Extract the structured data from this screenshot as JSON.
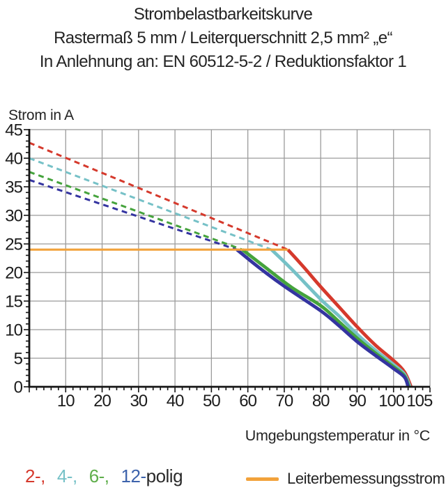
{
  "title": {
    "line1": "Strombelastbarkeitskurve",
    "line2": "Rastermaß 5 mm / Leiterquerschnitt 2,5 mm² „e“",
    "line3": "In Anlehnung an: EN 60512-5-2 / Reduktionsfaktor 1"
  },
  "colors": {
    "grid": "#9b9b9b",
    "axis": "#141414",
    "tick_text": "#1c1c1c",
    "label_text": "#242424"
  },
  "legend": {
    "poles": [
      {
        "label": "2-,",
        "color": "#D5392C"
      },
      {
        "label": "4-,",
        "color": "#76C1C7"
      },
      {
        "label": "6-,",
        "color": "#5FAE4B"
      },
      {
        "label": "12-",
        "color": "#3D63AC"
      }
    ],
    "poles_suffix": "polig",
    "rated_label": "Leiterbemessungsstrom",
    "rated_color": "#F2A23B"
  },
  "chart_data": {
    "type": "line",
    "title": "Strombelastbarkeitskurve",
    "xlabel": "Umgebungstemperatur in °C",
    "ylabel": "Strom in A",
    "xlim": [
      0,
      110
    ],
    "ylim": [
      0,
      45
    ],
    "grid": {
      "x_step": 10,
      "y_step": 5
    },
    "x_minor_step": 2,
    "y_minor_step": 1,
    "x_tick_labels": [
      10,
      20,
      30,
      40,
      50,
      60,
      70,
      80,
      90,
      100,
      105
    ],
    "y_tick_labels": [
      0,
      5,
      10,
      15,
      20,
      25,
      30,
      35,
      40,
      45
    ],
    "rated_current": {
      "value": 24,
      "x_start": 0,
      "x_end": 71,
      "color": "#F2A23B",
      "label": "Leiterbemessungsstrom"
    },
    "series": [
      {
        "name": "2-polig",
        "color": "#D5392C",
        "derating_line": [
          [
            0,
            42.7
          ],
          [
            71,
            24
          ]
        ],
        "curve": [
          [
            71,
            24
          ],
          [
            75,
            21.2
          ],
          [
            80,
            17.5
          ],
          [
            85,
            14.0
          ],
          [
            90,
            10.5
          ],
          [
            95,
            7.3
          ],
          [
            100,
            4.6
          ],
          [
            103,
            2.6
          ],
          [
            104.8,
            0
          ]
        ]
      },
      {
        "name": "4-polig",
        "color": "#76C1C7",
        "derating_line": [
          [
            0,
            40.0
          ],
          [
            66.5,
            24
          ]
        ],
        "curve": [
          [
            66.5,
            24
          ],
          [
            72,
            20.6
          ],
          [
            80,
            15.3
          ],
          [
            85,
            12.4
          ],
          [
            90,
            9.2
          ],
          [
            95,
            6.4
          ],
          [
            100,
            3.9
          ],
          [
            103,
            2.2
          ],
          [
            104.5,
            0
          ]
        ]
      },
      {
        "name": "6-polig",
        "color": "#45A33C",
        "derating_line": [
          [
            0,
            37.6
          ],
          [
            58.5,
            24
          ]
        ],
        "curve": [
          [
            58.5,
            24
          ],
          [
            65,
            20.8
          ],
          [
            72,
            17.4
          ],
          [
            80,
            14.2
          ],
          [
            85,
            11.4
          ],
          [
            90,
            8.5
          ],
          [
            95,
            5.9
          ],
          [
            100,
            3.5
          ],
          [
            103,
            1.9
          ],
          [
            104.2,
            0
          ]
        ]
      },
      {
        "name": "12-polig",
        "color": "#3434A0",
        "derating_line": [
          [
            0,
            36.2
          ],
          [
            57,
            24
          ]
        ],
        "curve": [
          [
            57,
            24
          ],
          [
            63,
            20.9
          ],
          [
            70,
            17.6
          ],
          [
            80,
            13.3
          ],
          [
            85,
            10.7
          ],
          [
            90,
            7.9
          ],
          [
            95,
            5.5
          ],
          [
            100,
            3.2
          ],
          [
            103,
            1.7
          ],
          [
            104.0,
            0
          ]
        ]
      }
    ]
  }
}
